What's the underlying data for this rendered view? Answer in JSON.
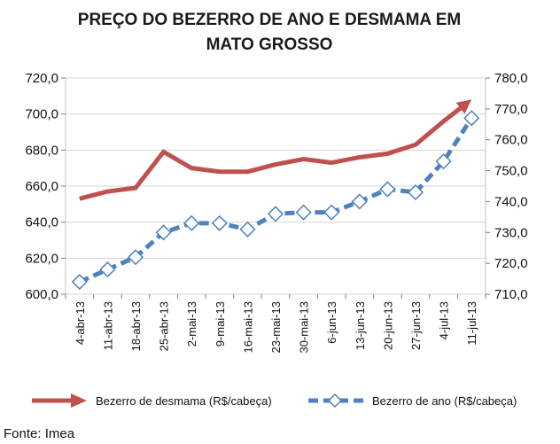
{
  "chart_data": {
    "type": "line",
    "title_lines": [
      "PREÇO DO BEZERRO DE ANO E DESMAMA EM",
      "MATO GROSSO"
    ],
    "categories": [
      "4-abr-13",
      "11-abr-13",
      "18-abr-13",
      "25-abr-13",
      "2-mai-13",
      "9-mai-13",
      "16-mai-13",
      "23-mai-13",
      "30-mai-13",
      "6-jun-13",
      "13-jun-13",
      "20-jun-13",
      "27-jun-13",
      "4-jul-13",
      "11-jul-13"
    ],
    "y_left": {
      "min": 600,
      "max": 720,
      "ticks": [
        600,
        620,
        640,
        660,
        680,
        700,
        720
      ],
      "tick_labels": [
        "600,0",
        "620,0",
        "640,0",
        "660,0",
        "680,0",
        "700,0",
        "720,0"
      ]
    },
    "y_right": {
      "min": 710,
      "max": 780,
      "ticks": [
        710,
        720,
        730,
        740,
        750,
        760,
        770,
        780
      ],
      "tick_labels": [
        "710,0",
        "720,0",
        "730,0",
        "740,0",
        "750,0",
        "760,0",
        "770,0",
        "780,0"
      ]
    },
    "grid": true,
    "series": [
      {
        "name": "Bezerro de desmama (R$/cabeça)",
        "axis": "left",
        "color": "#c0504d",
        "style": "solid-arrow",
        "values": [
          653,
          657,
          659,
          679,
          670,
          668,
          668,
          672,
          675,
          673,
          676,
          678,
          683,
          696,
          708
        ]
      },
      {
        "name": "Bezerro de ano (R$/cabeça)",
        "axis": "right",
        "color": "#4f81bd",
        "style": "dashed-diamond",
        "values": [
          714,
          718,
          722,
          730,
          733,
          733,
          731,
          736,
          736.5,
          736.5,
          740,
          744,
          743,
          753,
          767
        ]
      }
    ],
    "legend_position": "bottom"
  },
  "source_note": "Fonte: Imea"
}
